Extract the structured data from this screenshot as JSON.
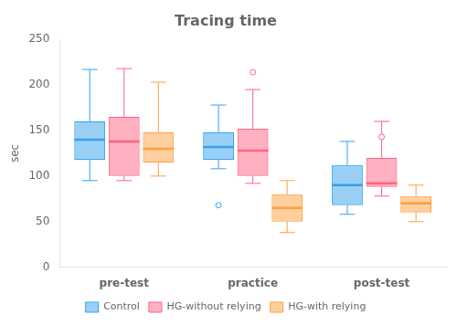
{
  "chart_data": {
    "type": "box",
    "title": "Tracing time",
    "ylabel": "sec",
    "categories": [
      "pre-test",
      "practice",
      "post-test"
    ],
    "series": [
      {
        "name": "Control",
        "q1": [
          118,
          118,
          68
        ],
        "median": [
          140,
          132,
          90
        ],
        "q3": [
          160,
          148,
          112
        ],
        "whislo": [
          95,
          108,
          58
        ],
        "whishi": [
          217,
          178,
          138
        ],
        "fliers": [
          [],
          [
            68
          ],
          []
        ]
      },
      {
        "name": "HG-without relying",
        "q1": [
          100,
          100,
          88
        ],
        "median": [
          138,
          128,
          92
        ],
        "q3": [
          165,
          152,
          120
        ],
        "whislo": [
          95,
          92,
          78
        ],
        "whishi": [
          218,
          195,
          160
        ],
        "fliers": [
          [],
          [
            214
          ],
          [
            143
          ]
        ]
      },
      {
        "name": "HG-with relying",
        "q1": [
          115,
          50,
          60
        ],
        "median": [
          130,
          65,
          70
        ],
        "q3": [
          148,
          80,
          78
        ],
        "whislo": [
          100,
          38,
          50
        ],
        "whishi": [
          203,
          95,
          90
        ],
        "fliers": [
          [],
          [],
          []
        ]
      }
    ],
    "ylim": [
      0,
      250
    ],
    "yticks": [
      0,
      50,
      100,
      150,
      200,
      250
    ],
    "grid": false,
    "legend": "bottom"
  }
}
